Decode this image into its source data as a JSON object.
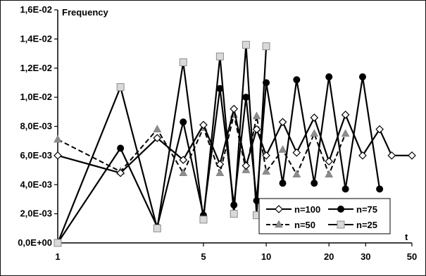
{
  "chart_data": {
    "type": "line",
    "xlabel": "t",
    "ylabel": "Frequency",
    "x_ticks": [
      "1",
      "5",
      "10",
      "20",
      "30",
      "50"
    ],
    "y_ticks": [
      "0,0E+00",
      "2,0E-03",
      "4,0E-03",
      "6,0E-03",
      "8,0E-03",
      "1,0E-02",
      "1,2E-02",
      "1,4E-02",
      "1,6E-02"
    ],
    "ylim": [
      0,
      0.016
    ],
    "xlim": [
      1,
      50
    ],
    "x_scale": "log",
    "grid": "none",
    "legend_position": "bottom-right",
    "series": [
      {
        "name": "n=100",
        "style": "solid",
        "marker": "diamond-open",
        "x": [
          1,
          2,
          3,
          4,
          5,
          6,
          7,
          8,
          9,
          10,
          12,
          14,
          17,
          20,
          24,
          29,
          35,
          40,
          50
        ],
        "y": [
          0.006,
          0.0048,
          0.0072,
          0.0057,
          0.0081,
          0.0054,
          0.0092,
          0.0053,
          0.0078,
          0.006,
          0.0083,
          0.0062,
          0.0086,
          0.0056,
          0.0088,
          0.006,
          0.0078,
          0.006,
          0.006
        ]
      },
      {
        "name": "n=75",
        "style": "solid",
        "marker": "circle-filled",
        "x": [
          1,
          2,
          3,
          4,
          5,
          6,
          7,
          8,
          9,
          10,
          12,
          14,
          17,
          20,
          24,
          29,
          35
        ],
        "y": [
          0.0,
          0.0065,
          0.0011,
          0.0083,
          0.0019,
          0.0106,
          0.0026,
          0.01,
          0.0029,
          0.011,
          0.0041,
          0.0112,
          0.0041,
          0.0114,
          0.0037,
          0.0114,
          0.0037
        ]
      },
      {
        "name": "n=50",
        "style": "dashed",
        "marker": "triangle-filled",
        "x": [
          1,
          2,
          3,
          4,
          5,
          6,
          7,
          8,
          9,
          10,
          12,
          14,
          17,
          20,
          24
        ],
        "y": [
          0.0071,
          0.0049,
          0.0078,
          0.0048,
          0.0079,
          0.0048,
          0.0088,
          0.005,
          0.0087,
          0.0049,
          0.0064,
          0.0047,
          0.0075,
          0.0047,
          0.0075
        ]
      },
      {
        "name": "n=25",
        "style": "solid",
        "marker": "square-open",
        "x": [
          1,
          2,
          3,
          4,
          5,
          6,
          7,
          8,
          9,
          10
        ],
        "y": [
          0.0,
          0.0107,
          0.001,
          0.0124,
          0.0016,
          0.0128,
          0.002,
          0.0136,
          0.0019,
          0.0135
        ]
      }
    ]
  }
}
